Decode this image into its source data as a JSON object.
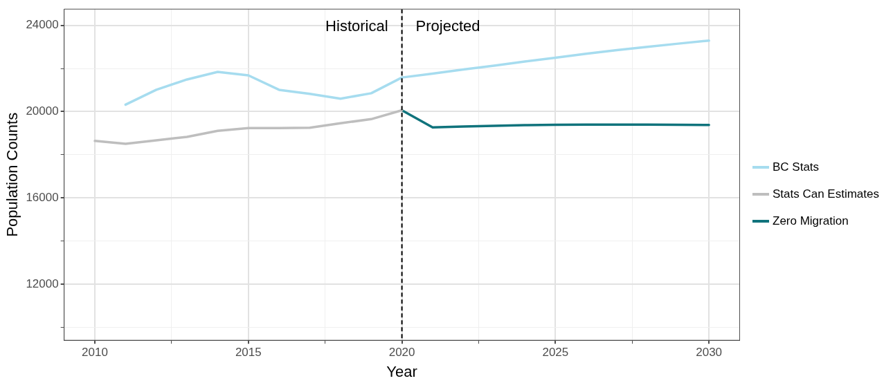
{
  "chart_data": {
    "type": "line",
    "xlabel": "Year",
    "ylabel": "Population Counts",
    "xlim": [
      2009,
      2031
    ],
    "xticks": [
      2010,
      {
        "value": 2012.5,
        "label": null
      },
      2015,
      {
        "value": 2017.5,
        "label": null
      },
      2020,
      {
        "value": 2022.5,
        "label": null
      },
      2025,
      {
        "value": 2027.5,
        "label": null
      },
      2030
    ],
    "ylim": [
      9400,
      24750
    ],
    "yticks": [
      {
        "value": 10000,
        "label": null
      },
      12000,
      {
        "value": 14000,
        "label": null
      },
      16000,
      {
        "value": 18000,
        "label": null
      },
      20000,
      {
        "value": 22000,
        "label": null
      },
      24000
    ],
    "series": [
      {
        "name": "BC Stats",
        "color": "#a6dcef",
        "x": [
          2011,
          2012,
          2013,
          2014,
          2015,
          2016,
          2017,
          2018,
          2019,
          2020,
          2021,
          2022,
          2023,
          2024,
          2025,
          2026,
          2027,
          2028,
          2029,
          2030
        ],
        "values": [
          20320,
          21010,
          21490,
          21840,
          21680,
          21010,
          20820,
          20600,
          20850,
          21580,
          21760,
          21950,
          22130,
          22320,
          22500,
          22680,
          22850,
          23000,
          23150,
          23290
        ]
      },
      {
        "name": "Stats Can Estimates",
        "color": "#bebebe",
        "x": [
          2010,
          2011,
          2012,
          2013,
          2014,
          2015,
          2016,
          2017,
          2018,
          2019,
          2020
        ],
        "values": [
          18640,
          18510,
          18670,
          18830,
          19110,
          19240,
          19240,
          19250,
          19460,
          19650,
          20060
        ]
      },
      {
        "name": "Zero Migration",
        "color": "#10737c",
        "x": [
          2020,
          2021,
          2022,
          2023,
          2024,
          2025,
          2026,
          2027,
          2028,
          2029,
          2030
        ],
        "values": [
          20060,
          19270,
          19310,
          19340,
          19370,
          19390,
          19400,
          19400,
          19400,
          19390,
          19380
        ]
      }
    ],
    "ref_lines": [
      {
        "axis": "x",
        "value": 2020,
        "color": "#000000",
        "line_style": "dashed"
      }
    ],
    "annotations": [
      "Historical",
      "Projected"
    ],
    "grid": true,
    "legend": "right",
    "marker": "none",
    "line_style": "solid"
  }
}
